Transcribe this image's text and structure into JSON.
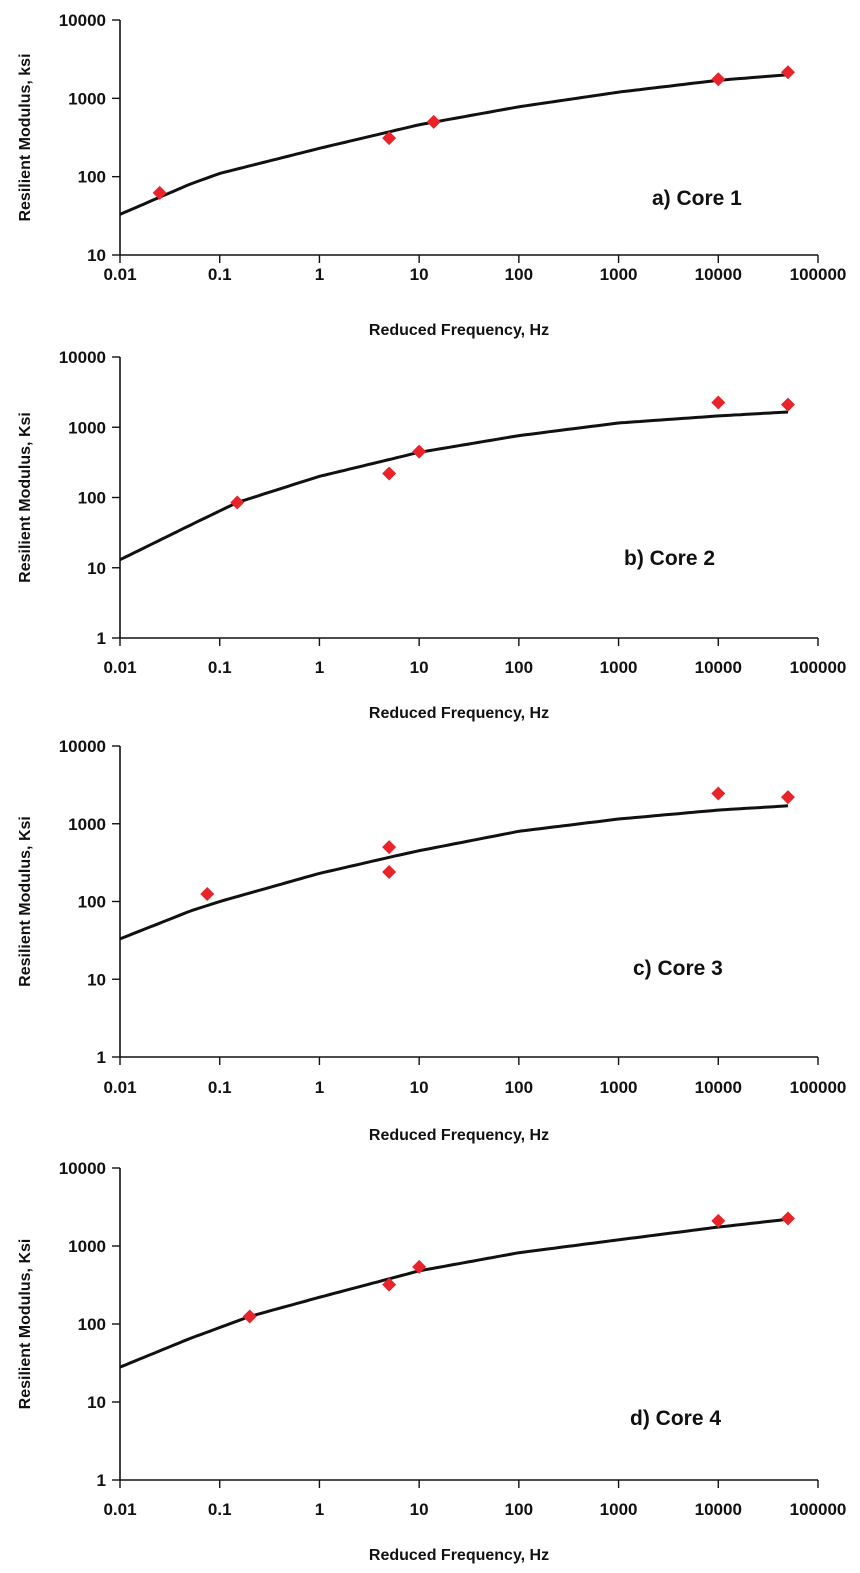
{
  "colors": {
    "curve": "#111111",
    "marker": "#e8232a",
    "axis": "#111111"
  },
  "chart_data": [
    {
      "type": "scatter",
      "annotation": "a) Core 1",
      "xlabel": "Reduced Frequency, Hz",
      "ylabel": "Resilient Modulus, ksi",
      "xscale": "log",
      "yscale": "log",
      "xlim": [
        0.01,
        100000
      ],
      "ylim": [
        10,
        10000
      ],
      "xticks": [
        "0.01",
        "0.1",
        "1",
        "10",
        "100",
        "1000",
        "10000",
        "100000"
      ],
      "yticks": [
        "10",
        "100",
        "1000",
        "10000"
      ],
      "grid": false,
      "series": [
        {
          "kind": "line",
          "x": [
            0.01,
            0.05,
            0.1,
            1,
            10,
            100,
            1000,
            10000,
            50000
          ],
          "y": [
            33,
            80,
            110,
            230,
            460,
            780,
            1200,
            1700,
            2000
          ]
        },
        {
          "kind": "markers",
          "x": [
            0.025,
            5,
            14,
            10000,
            50000
          ],
          "y": [
            62,
            310,
            500,
            1750,
            2150
          ]
        }
      ]
    },
    {
      "type": "scatter",
      "annotation": "b) Core 2",
      "xlabel": "Reduced Frequency, Hz",
      "ylabel": "Resilient Modulus, Ksi",
      "xscale": "log",
      "yscale": "log",
      "xlim": [
        0.01,
        100000
      ],
      "ylim": [
        1,
        10000
      ],
      "xticks": [
        "0.01",
        "0.1",
        "1",
        "10",
        "100",
        "1000",
        "10000",
        "100000"
      ],
      "yticks": [
        "1",
        "10",
        "100",
        "1000",
        "10000"
      ],
      "grid": false,
      "series": [
        {
          "kind": "line",
          "x": [
            0.01,
            0.05,
            0.15,
            1,
            10,
            100,
            1000,
            10000,
            50000
          ],
          "y": [
            13,
            40,
            85,
            200,
            440,
            760,
            1150,
            1450,
            1650
          ]
        },
        {
          "kind": "markers",
          "x": [
            0.15,
            5,
            10,
            10000,
            50000
          ],
          "y": [
            85,
            220,
            450,
            2250,
            2100
          ]
        }
      ]
    },
    {
      "type": "scatter",
      "annotation": "c) Core 3",
      "xlabel": "Reduced Frequency, Hz",
      "ylabel": "Resilient Modulus, Ksi",
      "xscale": "log",
      "yscale": "log",
      "xlim": [
        0.01,
        100000
      ],
      "ylim": [
        1,
        10000
      ],
      "xticks": [
        "0.01",
        "0.1",
        "1",
        "10",
        "100",
        "1000",
        "10000",
        "100000"
      ],
      "yticks": [
        "1",
        "10",
        "100",
        "1000",
        "10000"
      ],
      "grid": false,
      "series": [
        {
          "kind": "line",
          "x": [
            0.01,
            0.05,
            0.1,
            1,
            5,
            10,
            100,
            1000,
            10000,
            50000
          ],
          "y": [
            33,
            75,
            100,
            230,
            370,
            450,
            800,
            1150,
            1500,
            1700
          ]
        },
        {
          "kind": "markers",
          "x": [
            0.075,
            5,
            5,
            10000,
            50000
          ],
          "y": [
            125,
            500,
            240,
            2450,
            2200
          ]
        }
      ]
    },
    {
      "type": "scatter",
      "annotation": "d) Core 4",
      "xlabel": "Reduced Frequency, Hz",
      "ylabel": "Resilient Modulus, Ksi",
      "xscale": "log",
      "yscale": "log",
      "xlim": [
        0.01,
        100000
      ],
      "ylim": [
        1,
        10000
      ],
      "xticks": [
        "0.01",
        "0.1",
        "1",
        "10",
        "100",
        "1000",
        "10000",
        "100000"
      ],
      "yticks": [
        "1",
        "10",
        "100",
        "1000",
        "10000"
      ],
      "grid": false,
      "series": [
        {
          "kind": "line",
          "x": [
            0.01,
            0.05,
            0.2,
            1,
            10,
            100,
            1000,
            10000,
            50000
          ],
          "y": [
            28,
            65,
            125,
            220,
            480,
            820,
            1200,
            1750,
            2200
          ]
        },
        {
          "kind": "markers",
          "x": [
            0.2,
            5,
            10,
            10000,
            50000
          ],
          "y": [
            125,
            320,
            540,
            2100,
            2250
          ]
        }
      ]
    }
  ]
}
